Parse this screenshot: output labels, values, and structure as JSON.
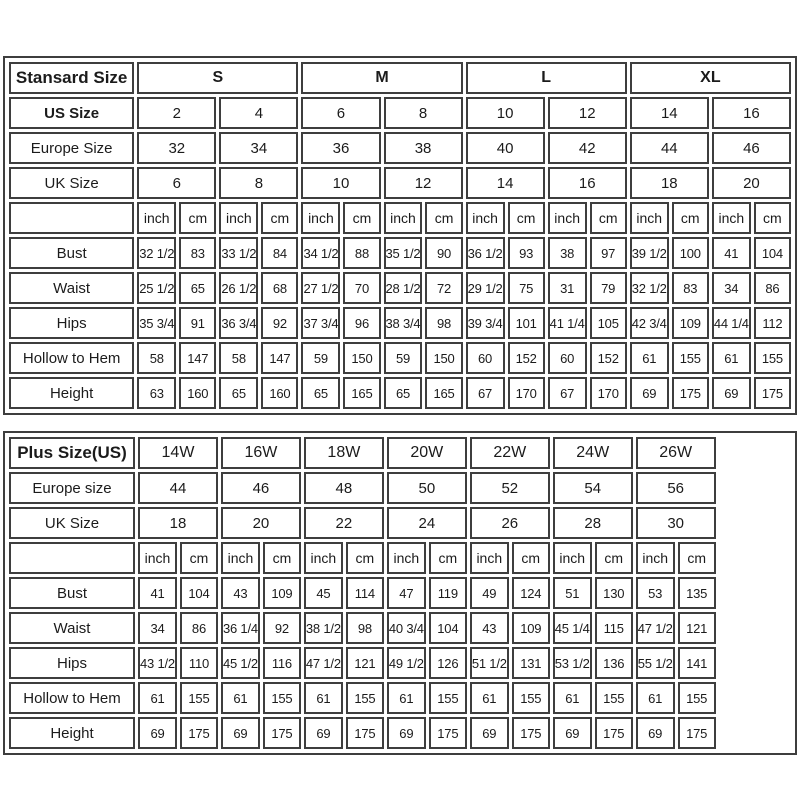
{
  "standard_table": {
    "header_row": {
      "label": "Stansard Size",
      "cells": [
        "S",
        "M",
        "L",
        "XL"
      ]
    },
    "size_rows": [
      {
        "label": "US Size",
        "values": [
          "2",
          "4",
          "6",
          "8",
          "10",
          "12",
          "14",
          "16"
        ]
      },
      {
        "label": "Europe Size",
        "values": [
          "32",
          "34",
          "36",
          "38",
          "40",
          "42",
          "44",
          "46"
        ]
      },
      {
        "label": "UK Size",
        "values": [
          "6",
          "8",
          "10",
          "12",
          "14",
          "16",
          "18",
          "20"
        ]
      }
    ],
    "units": [
      "inch",
      "cm"
    ],
    "measurement_rows": [
      {
        "label": "Bust",
        "values": [
          "32 1/2",
          "83",
          "33 1/2",
          "84",
          "34 1/2",
          "88",
          "35 1/2",
          "90",
          "36 1/2",
          "93",
          "38",
          "97",
          "39 1/2",
          "100",
          "41",
          "104"
        ]
      },
      {
        "label": "Waist",
        "values": [
          "25 1/2",
          "65",
          "26 1/2",
          "68",
          "27 1/2",
          "70",
          "28 1/2",
          "72",
          "29 1/2",
          "75",
          "31",
          "79",
          "32 1/2",
          "83",
          "34",
          "86"
        ]
      },
      {
        "label": "Hips",
        "values": [
          "35 3/4",
          "91",
          "36 3/4",
          "92",
          "37 3/4",
          "96",
          "38 3/4",
          "98",
          "39 3/4",
          "101",
          "41 1/4",
          "105",
          "42 3/4",
          "109",
          "44 1/4",
          "112"
        ]
      },
      {
        "label": "Hollow to Hem",
        "values": [
          "58",
          "147",
          "58",
          "147",
          "59",
          "150",
          "59",
          "150",
          "60",
          "152",
          "60",
          "152",
          "61",
          "155",
          "61",
          "155"
        ]
      },
      {
        "label": "Height",
        "values": [
          "63",
          "160",
          "65",
          "160",
          "65",
          "165",
          "65",
          "165",
          "67",
          "170",
          "67",
          "170",
          "69",
          "175",
          "69",
          "175"
        ]
      }
    ]
  },
  "plus_table": {
    "header_row": {
      "label": "Plus Size(US)",
      "cells": [
        "14W",
        "16W",
        "18W",
        "20W",
        "22W",
        "24W",
        "26W"
      ]
    },
    "size_rows": [
      {
        "label": "Europe size",
        "values": [
          "44",
          "46",
          "48",
          "50",
          "52",
          "54",
          "56"
        ]
      },
      {
        "label": "UK Size",
        "values": [
          "18",
          "20",
          "22",
          "24",
          "26",
          "28",
          "30"
        ]
      }
    ],
    "units": [
      "inch",
      "cm"
    ],
    "measurement_rows": [
      {
        "label": "Bust",
        "values": [
          "41",
          "104",
          "43",
          "109",
          "45",
          "114",
          "47",
          "119",
          "49",
          "124",
          "51",
          "130",
          "53",
          "135"
        ]
      },
      {
        "label": "Waist",
        "values": [
          "34",
          "86",
          "36 1/4",
          "92",
          "38 1/2",
          "98",
          "40 3/4",
          "104",
          "43",
          "109",
          "45 1/4",
          "115",
          "47 1/2",
          "121"
        ]
      },
      {
        "label": "Hips",
        "values": [
          "43 1/2",
          "110",
          "45 1/2",
          "116",
          "47 1/2",
          "121",
          "49 1/2",
          "126",
          "51 1/2",
          "131",
          "53 1/2",
          "136",
          "55 1/2",
          "141"
        ]
      },
      {
        "label": "Hollow to Hem",
        "values": [
          "61",
          "155",
          "61",
          "155",
          "61",
          "155",
          "61",
          "155",
          "61",
          "155",
          "61",
          "155",
          "61",
          "155"
        ]
      },
      {
        "label": "Height",
        "values": [
          "69",
          "175",
          "69",
          "175",
          "69",
          "175",
          "69",
          "175",
          "69",
          "175",
          "69",
          "175",
          "69",
          "175"
        ]
      }
    ]
  },
  "colors": {
    "border": "#3e3e3e",
    "text": "#1b1b1b",
    "background": "#ffffff"
  }
}
